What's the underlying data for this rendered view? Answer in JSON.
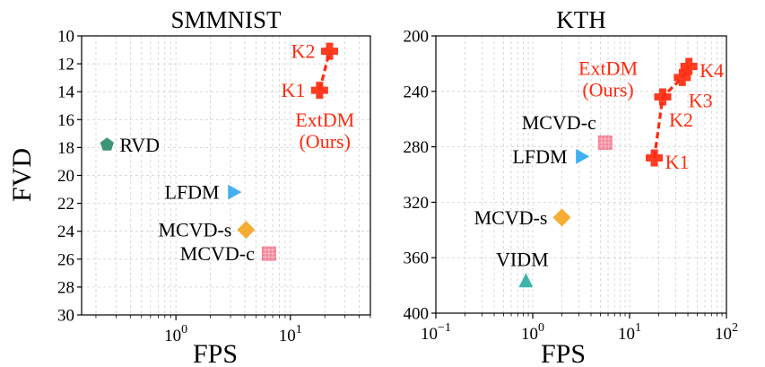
{
  "ylabel_shared": "FVD",
  "chart_data": [
    {
      "type": "scatter",
      "title": "SMMNIST",
      "xlabel": "FPS",
      "ylabel": "FVD",
      "x_scale": "log",
      "xlim": [
        0.15,
        50
      ],
      "ylim": [
        30,
        10
      ],
      "y_inverted": true,
      "x_ticks": [
        {
          "value": 1,
          "base": "10",
          "exp": "0"
        },
        {
          "value": 10,
          "base": "10",
          "exp": "1"
        }
      ],
      "y_ticks": [
        10,
        12,
        14,
        16,
        18,
        20,
        22,
        24,
        26,
        28,
        30
      ],
      "grid": true,
      "points": [
        {
          "label": "RVD",
          "x": 0.25,
          "y": 17.8,
          "marker": "pentagon",
          "color": "#2e8b6a",
          "label_pos": "right"
        },
        {
          "label": "LFDM",
          "x": 3.2,
          "y": 21.2,
          "marker": "triangle-right",
          "color": "#33a9f0",
          "label_pos": "left"
        },
        {
          "label": "MCVD-s",
          "x": 4.1,
          "y": 23.9,
          "marker": "diamond",
          "color": "#f5a623",
          "label_pos": "left"
        },
        {
          "label": "MCVD-c",
          "x": 6.5,
          "y": 25.6,
          "marker": "square",
          "color": "#f47a8f",
          "label_pos": "left"
        },
        {
          "label": "K1",
          "x": 18,
          "y": 13.9,
          "marker": "plus",
          "color": "#ff2a0e",
          "label_pos": "left"
        },
        {
          "label": "K2",
          "x": 22,
          "y": 11.1,
          "marker": "plus",
          "color": "#ff2a0e",
          "label_pos": "left"
        }
      ],
      "series": [
        {
          "name": "ExtDM (Ours)",
          "points": [
            "K1",
            "K2"
          ],
          "color": "#ff2a0e",
          "style": "dashed"
        }
      ],
      "annotations": [
        {
          "text_lines": [
            "ExtDM",
            "(Ours)"
          ],
          "x": 20,
          "y": 16.5,
          "color": "#ff2a0e"
        }
      ]
    },
    {
      "type": "scatter",
      "title": "KTH",
      "xlabel": "FPS",
      "ylabel": "",
      "x_scale": "log",
      "xlim": [
        0.1,
        100
      ],
      "ylim": [
        400,
        200
      ],
      "y_inverted": true,
      "x_ticks": [
        {
          "value": 0.1,
          "base": "10",
          "exp": "−1"
        },
        {
          "value": 1,
          "base": "10",
          "exp": "0"
        },
        {
          "value": 10,
          "base": "10",
          "exp": "1"
        },
        {
          "value": 100,
          "base": "10",
          "exp": "2"
        }
      ],
      "y_ticks": [
        200,
        240,
        280,
        320,
        360,
        400
      ],
      "grid": true,
      "points": [
        {
          "label": "MCVD-c",
          "x": 5.6,
          "y": 277,
          "marker": "square",
          "color": "#f47a8f",
          "label_pos": "upper-left"
        },
        {
          "label": "LFDM",
          "x": 3.2,
          "y": 287,
          "marker": "triangle-right",
          "color": "#33a9f0",
          "label_pos": "left"
        },
        {
          "label": "MCVD-s",
          "x": 2.0,
          "y": 331,
          "marker": "diamond",
          "color": "#f5a623",
          "label_pos": "left"
        },
        {
          "label": "VIDM",
          "x": 0.85,
          "y": 377,
          "marker": "triangle-up",
          "color": "#2ab0a6",
          "label_pos": "above"
        },
        {
          "label": "K1",
          "x": 18,
          "y": 288,
          "marker": "plus",
          "color": "#ff2a0e",
          "label_pos": "below-right"
        },
        {
          "label": "K2",
          "x": 22,
          "y": 244,
          "marker": "plus",
          "color": "#ff2a0e",
          "label_pos": "below-right-far"
        },
        {
          "label": "K3",
          "x": 35,
          "y": 230,
          "marker": "plus",
          "color": "#ff2a0e",
          "label_pos": "below-right-far"
        },
        {
          "label": "K4",
          "x": 41,
          "y": 222,
          "marker": "plus",
          "color": "#ff2a0e",
          "label_pos": "below-right"
        }
      ],
      "series": [
        {
          "name": "ExtDM (Ours)",
          "points": [
            "K1",
            "K2",
            "K3",
            "K4"
          ],
          "color": "#ff2a0e",
          "style": "dashed"
        }
      ],
      "annotations": [
        {
          "text_lines": [
            "ExtDM",
            "(Ours)"
          ],
          "x": 6,
          "y": 228,
          "color": "#ff2a0e"
        }
      ]
    }
  ]
}
